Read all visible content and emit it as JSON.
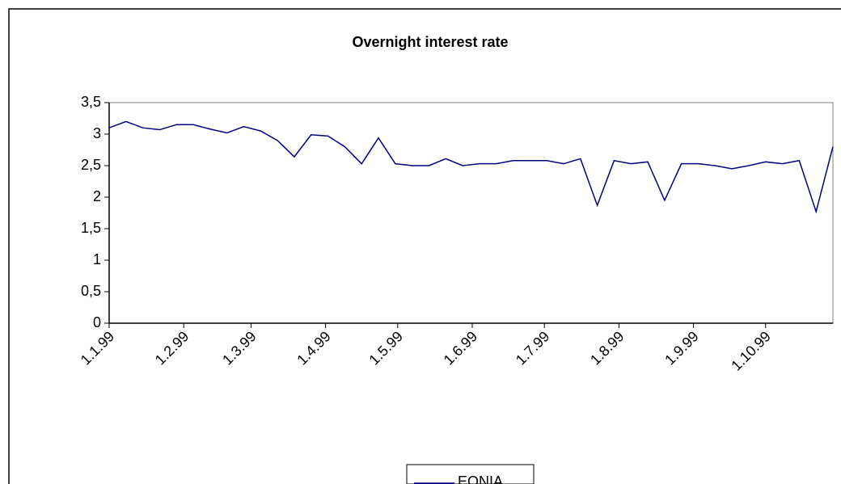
{
  "chart_data": {
    "type": "line",
    "title": "Overnight interest rate",
    "x": [
      "1999-01-01",
      "1999-01-08",
      "1999-01-15",
      "1999-01-22",
      "1999-01-29",
      "1999-02-05",
      "1999-02-12",
      "1999-02-19",
      "1999-02-26",
      "1999-03-05",
      "1999-03-12",
      "1999-03-19",
      "1999-03-26",
      "1999-04-02",
      "1999-04-09",
      "1999-04-16",
      "1999-04-23",
      "1999-04-30",
      "1999-05-07",
      "1999-05-14",
      "1999-05-21",
      "1999-05-28",
      "1999-06-04",
      "1999-06-11",
      "1999-06-18",
      "1999-06-25",
      "1999-07-02",
      "1999-07-09",
      "1999-07-16",
      "1999-07-23",
      "1999-07-30",
      "1999-08-06",
      "1999-08-13",
      "1999-08-20",
      "1999-08-27",
      "1999-09-03",
      "1999-09-10",
      "1999-09-17",
      "1999-09-24",
      "1999-10-01",
      "1999-10-08",
      "1999-10-15",
      "1999-10-22",
      "1999-10-29"
    ],
    "series": [
      {
        "name": "EONIA",
        "color": "#000080",
        "values": [
          3.1,
          3.2,
          3.1,
          3.07,
          3.15,
          3.15,
          3.08,
          3.02,
          3.12,
          3.05,
          2.9,
          2.64,
          2.99,
          2.97,
          2.8,
          2.53,
          2.94,
          2.53,
          2.5,
          2.5,
          2.61,
          2.5,
          2.53,
          2.53,
          2.58,
          2.58,
          2.58,
          2.53,
          2.61,
          1.87,
          2.58,
          2.53,
          2.56,
          1.95,
          2.53,
          2.53,
          2.5,
          2.45,
          2.5,
          2.56,
          2.53,
          2.58,
          1.77,
          2.8
        ]
      }
    ],
    "xlim": [
      "1999-01-01",
      "1999-10-29"
    ],
    "xticks": [
      {
        "value": "1999-01-01",
        "label": "1.1.99"
      },
      {
        "value": "1999-02-01",
        "label": "1.2.99"
      },
      {
        "value": "1999-03-01",
        "label": "1.3.99"
      },
      {
        "value": "1999-04-01",
        "label": "1.4.99"
      },
      {
        "value": "1999-05-01",
        "label": "1.5.99"
      },
      {
        "value": "1999-06-01",
        "label": "1.6.99"
      },
      {
        "value": "1999-07-01",
        "label": "1.7.99"
      },
      {
        "value": "1999-08-01",
        "label": "1.8.99"
      },
      {
        "value": "1999-09-01",
        "label": "1.9.99"
      },
      {
        "value": "1999-10-01",
        "label": "1.10.99"
      }
    ],
    "ylim": [
      0,
      3.5
    ],
    "yticks": [
      0,
      {
        "value": 0.5,
        "label": "0,5"
      },
      1,
      {
        "value": 1.5,
        "label": "1,5"
      },
      2,
      {
        "value": 2.5,
        "label": "2,5"
      },
      3,
      {
        "value": 3.5,
        "label": "3,5"
      }
    ],
    "legend": "bottom",
    "grid": false
  }
}
